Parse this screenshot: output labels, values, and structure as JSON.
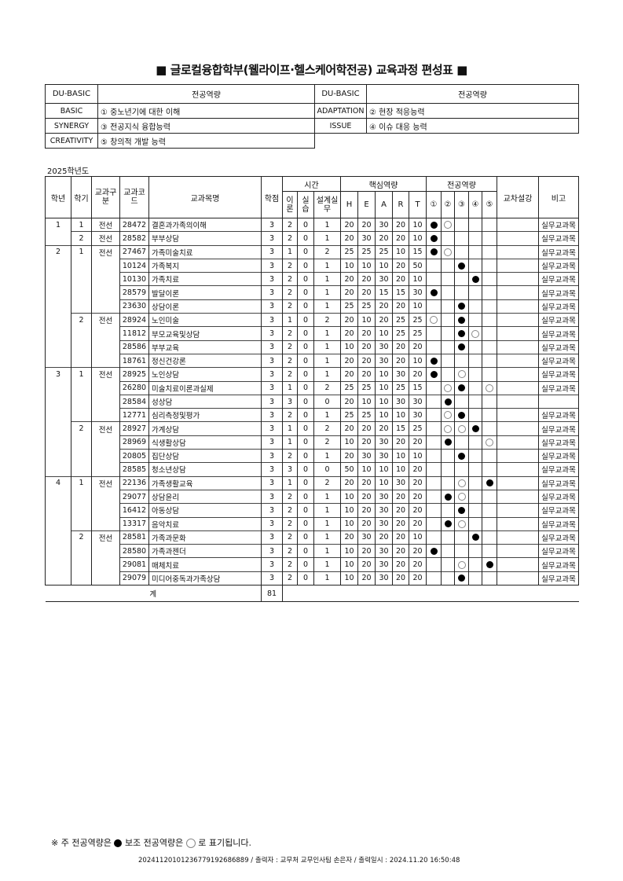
{
  "title": "■ 글로컬융합학부(웰라이프·헬스케어학전공) 교육과정 편성표 ■",
  "competency_table": {
    "header": [
      "DU-BASIC",
      "전공역량",
      "DU-BASIC",
      "전공역량"
    ],
    "items": [
      {
        "key": "BASIC",
        "value": "① 중노년기에 대한 이해"
      },
      {
        "key": "ADAPTATION",
        "value": "② 현장 적응능력"
      },
      {
        "key": "SYNERGY",
        "value": "③ 전공지식 융합능력"
      },
      {
        "key": "ISSUE",
        "value": "④ 이슈 대응 능력"
      },
      {
        "key": "CREATIVITY",
        "value": "⑤ 창의적 개발 능력"
      }
    ]
  },
  "year_label": "2025학년도",
  "table": {
    "headers": {
      "grade": "학년",
      "semester": "학기",
      "type": "교과구분",
      "code": "교과코드",
      "name": "교과목명",
      "credit": "학점",
      "time": "시간",
      "time_sub": [
        "이론",
        "실습",
        "설계실무"
      ],
      "core": "핵심역량",
      "core_sub": [
        "H",
        "E",
        "A",
        "R",
        "T"
      ],
      "major": "전공역량",
      "major_sub": [
        "①",
        "②",
        "③",
        "④",
        "⑤"
      ],
      "cross": "교차설강",
      "remark": "비고"
    },
    "rows": [
      [
        "1",
        "1",
        "전선",
        "28472",
        "결혼과가족의이해",
        "3",
        "2",
        "0",
        "1",
        "20",
        "20",
        "30",
        "20",
        "10",
        [
          "F",
          "O",
          "",
          "",
          ""
        ],
        "",
        "실무교과목"
      ],
      [
        "",
        "2",
        "전선",
        "28582",
        "부부상담",
        "3",
        "2",
        "0",
        "1",
        "20",
        "30",
        "20",
        "20",
        "10",
        [
          "F",
          "",
          "",
          "",
          ""
        ],
        "",
        "실무교과목"
      ],
      [
        "2",
        "1",
        "전선",
        "27467",
        "가족미술치료",
        "3",
        "1",
        "0",
        "2",
        "25",
        "25",
        "25",
        "10",
        "15",
        [
          "F",
          "O",
          "",
          "",
          ""
        ],
        "",
        "실무교과목"
      ],
      [
        "",
        "",
        "",
        "10124",
        "가족복지",
        "3",
        "2",
        "0",
        "1",
        "10",
        "10",
        "10",
        "20",
        "50",
        [
          "",
          "",
          "F",
          "",
          ""
        ],
        "",
        "실무교과목"
      ],
      [
        "",
        "",
        "",
        "10130",
        "가족치료",
        "3",
        "2",
        "0",
        "1",
        "20",
        "20",
        "30",
        "20",
        "10",
        [
          "",
          "",
          "",
          "F",
          ""
        ],
        "",
        "실무교과목"
      ],
      [
        "",
        "",
        "",
        "28579",
        "발달이론",
        "3",
        "2",
        "0",
        "1",
        "20",
        "20",
        "15",
        "15",
        "30",
        [
          "F",
          "",
          "",
          "",
          ""
        ],
        "",
        "실무교과목"
      ],
      [
        "",
        "",
        "",
        "23630",
        "상담이론",
        "3",
        "2",
        "0",
        "1",
        "25",
        "25",
        "20",
        "20",
        "10",
        [
          "",
          "",
          "F",
          "",
          ""
        ],
        "",
        "실무교과목"
      ],
      [
        "",
        "2",
        "전선",
        "28924",
        "노인미술",
        "3",
        "1",
        "0",
        "2",
        "20",
        "10",
        "20",
        "25",
        "25",
        [
          "O",
          "",
          "F",
          "",
          ""
        ],
        "",
        "실무교과목"
      ],
      [
        "",
        "",
        "",
        "11812",
        "부모교육및상담",
        "3",
        "2",
        "0",
        "1",
        "20",
        "20",
        "10",
        "25",
        "25",
        [
          "",
          "",
          "F",
          "O",
          ""
        ],
        "",
        "실무교과목"
      ],
      [
        "",
        "",
        "",
        "28586",
        "부부교육",
        "3",
        "2",
        "0",
        "1",
        "10",
        "20",
        "30",
        "20",
        "20",
        [
          "",
          "",
          "F",
          "",
          ""
        ],
        "",
        "실무교과목"
      ],
      [
        "",
        "",
        "",
        "18761",
        "정신건강론",
        "3",
        "2",
        "0",
        "1",
        "20",
        "20",
        "30",
        "20",
        "10",
        [
          "F",
          "",
          "",
          "",
          ""
        ],
        "",
        "실무교과목"
      ],
      [
        "3",
        "1",
        "전선",
        "28925",
        "노인상담",
        "3",
        "2",
        "0",
        "1",
        "20",
        "20",
        "10",
        "30",
        "20",
        [
          "F",
          "",
          "O",
          "",
          ""
        ],
        "",
        "실무교과목"
      ],
      [
        "",
        "",
        "",
        "26280",
        "미술치료이론과실제",
        "3",
        "1",
        "0",
        "2",
        "25",
        "25",
        "10",
        "25",
        "15",
        [
          "",
          "O",
          "F",
          "",
          "O"
        ],
        "",
        "실무교과목"
      ],
      [
        "",
        "",
        "",
        "28584",
        "성상담",
        "3",
        "3",
        "0",
        "0",
        "20",
        "10",
        "10",
        "30",
        "30",
        [
          "",
          "F",
          "",
          "",
          ""
        ],
        "",
        ""
      ],
      [
        "",
        "",
        "",
        "12771",
        "심리측정및평가",
        "3",
        "2",
        "0",
        "1",
        "25",
        "25",
        "10",
        "10",
        "30",
        [
          "",
          "O",
          "F",
          "",
          ""
        ],
        "",
        "실무교과목"
      ],
      [
        "",
        "2",
        "전선",
        "28927",
        "가계상담",
        "3",
        "1",
        "0",
        "2",
        "20",
        "20",
        "20",
        "15",
        "25",
        [
          "",
          "O",
          "O",
          "F",
          ""
        ],
        "",
        "실무교과목"
      ],
      [
        "",
        "",
        "",
        "28969",
        "식생활상담",
        "3",
        "1",
        "0",
        "2",
        "10",
        "20",
        "30",
        "20",
        "20",
        [
          "",
          "F",
          "",
          "",
          "O"
        ],
        "",
        "실무교과목"
      ],
      [
        "",
        "",
        "",
        "20805",
        "집단상담",
        "3",
        "2",
        "0",
        "1",
        "20",
        "30",
        "30",
        "10",
        "10",
        [
          "",
          "",
          "F",
          "",
          ""
        ],
        "",
        "실무교과목"
      ],
      [
        "",
        "",
        "",
        "28585",
        "청소년상담",
        "3",
        "3",
        "0",
        "0",
        "50",
        "10",
        "10",
        "10",
        "20",
        [
          "",
          "",
          "",
          "",
          ""
        ],
        "",
        "실무교과목"
      ],
      [
        "4",
        "1",
        "전선",
        "22136",
        "가족생활교육",
        "3",
        "1",
        "0",
        "2",
        "20",
        "20",
        "10",
        "30",
        "20",
        [
          "",
          "",
          "O",
          "",
          "F"
        ],
        "",
        "실무교과목"
      ],
      [
        "",
        "",
        "",
        "29077",
        "상담윤리",
        "3",
        "2",
        "0",
        "1",
        "10",
        "20",
        "30",
        "20",
        "20",
        [
          "",
          "F",
          "O",
          "",
          ""
        ],
        "",
        "실무교과목"
      ],
      [
        "",
        "",
        "",
        "16412",
        "아동상담",
        "3",
        "2",
        "0",
        "1",
        "10",
        "20",
        "30",
        "20",
        "20",
        [
          "",
          "",
          "F",
          "",
          ""
        ],
        "",
        "실무교과목"
      ],
      [
        "",
        "",
        "",
        "13317",
        "음악치료",
        "3",
        "2",
        "0",
        "1",
        "10",
        "20",
        "30",
        "20",
        "20",
        [
          "",
          "F",
          "O",
          "",
          ""
        ],
        "",
        "실무교과목"
      ],
      [
        "",
        "2",
        "전선",
        "28581",
        "가족과문화",
        "3",
        "2",
        "0",
        "1",
        "20",
        "30",
        "20",
        "20",
        "10",
        [
          "",
          "",
          "",
          "F",
          ""
        ],
        "",
        "실무교과목"
      ],
      [
        "",
        "",
        "",
        "28580",
        "가족과젠더",
        "3",
        "2",
        "0",
        "1",
        "10",
        "20",
        "30",
        "20",
        "20",
        [
          "F",
          "",
          "",
          "",
          ""
        ],
        "",
        "실무교과목"
      ],
      [
        "",
        "",
        "",
        "29081",
        "매체치료",
        "3",
        "2",
        "0",
        "1",
        "10",
        "20",
        "30",
        "20",
        "20",
        [
          "",
          "",
          "O",
          "",
          "F"
        ],
        "",
        "실무교과목"
      ],
      [
        "",
        "",
        "",
        "29079",
        "미디어중독과가족상담",
        "3",
        "2",
        "0",
        "1",
        "10",
        "20",
        "30",
        "20",
        "20",
        [
          "",
          "",
          "F",
          "",
          ""
        ],
        "",
        "실무교과목"
      ]
    ],
    "total_label": "계",
    "total_credits": "81"
  },
  "legend": {
    "prefix": "※ 주 전공역량은",
    "middle": "보조 전공역량은",
    "suffix": "로 표기됩니다."
  },
  "print_info": "20241120101236779192686889 / 출력자 : 교무처 교무인사팀 손은자 / 출력일시 : 2024.11.20 16:50:48"
}
